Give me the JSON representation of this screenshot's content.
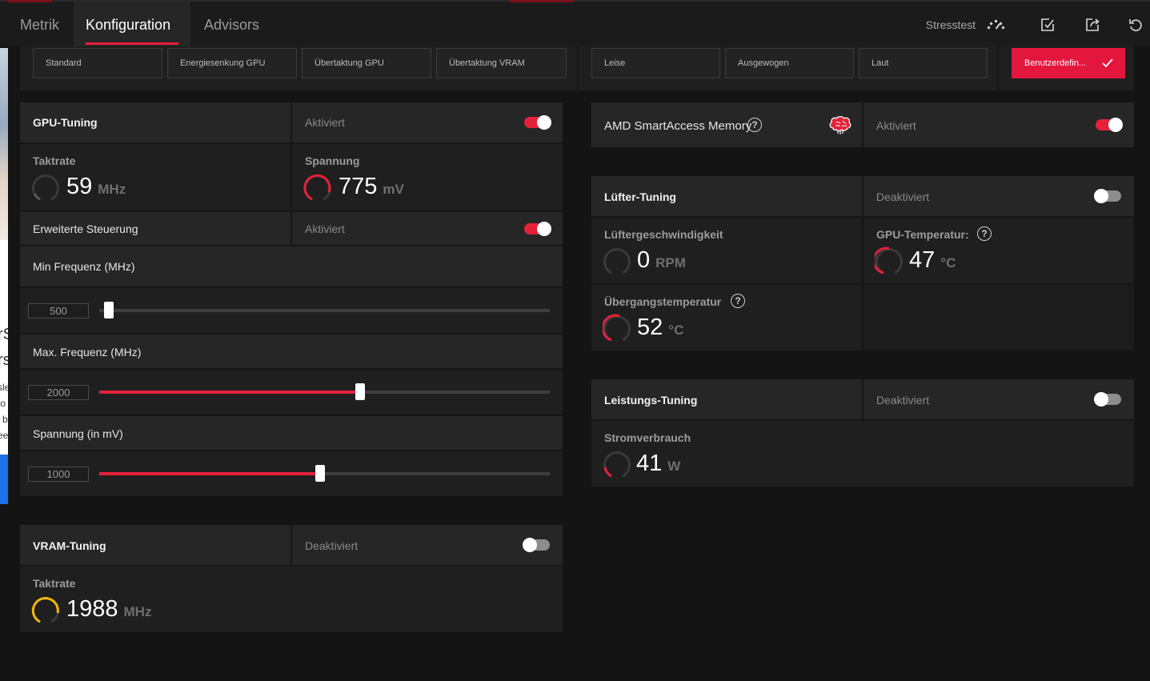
{
  "nav": {
    "tabs": [
      {
        "label": "Metrik"
      },
      {
        "label": "Konfiguration"
      },
      {
        "label": "Advisors"
      }
    ],
    "active_tab": "Konfiguration",
    "stresstest_label": "Stresstest",
    "icons": [
      "speedometer-icon",
      "checklist-icon",
      "export-icon",
      "reset-icon"
    ]
  },
  "presets_gpu": [
    "Standard",
    "Energiesenkung GPU",
    "Übertaktung GPU",
    "Übertaktung VRAM"
  ],
  "presets_fan": [
    "Leise",
    "Ausgewogen",
    "Laut"
  ],
  "preset_custom": {
    "label": "Benutzerdefin...",
    "selected": true
  },
  "gpu_tuning": {
    "title": "GPU-Tuning",
    "status": "Aktiviert",
    "enabled": true,
    "clock": {
      "label": "Taktrate",
      "value": "59",
      "unit": "MHz"
    },
    "voltage": {
      "label": "Spannung",
      "value": "775",
      "unit": "mV"
    },
    "advanced": {
      "label": "Erweiterte Steuerung",
      "status": "Aktiviert",
      "enabled": true
    },
    "sliders": [
      {
        "label": "Min Frequenz (MHz)",
        "value": "500",
        "fraction": 0.01
      },
      {
        "label": "Max. Frequenz (MHz)",
        "value": "2000",
        "fraction": 0.58
      },
      {
        "label": "Spannung (in mV)",
        "value": "1000",
        "fraction": 0.49
      }
    ]
  },
  "vram_tuning": {
    "title": "VRAM-Tuning",
    "status": "Deaktiviert",
    "enabled": false,
    "clock": {
      "label": "Taktrate",
      "value": "1988",
      "unit": "MHz"
    }
  },
  "smart_access": {
    "title": "AMD SmartAccess Memory",
    "status": "Aktiviert",
    "enabled": true
  },
  "fan_tuning": {
    "title": "Lüfter-Tuning",
    "status": "Deaktiviert",
    "enabled": false,
    "fan_speed": {
      "label": "Lüftergeschwindigkeit",
      "value": "0",
      "unit": "RPM"
    },
    "gpu_temp": {
      "label": "GPU-Temperatur:",
      "value": "47",
      "unit": "°C"
    },
    "junction_temp": {
      "label": "Übergangstemperatur",
      "value": "52",
      "unit": "°C"
    }
  },
  "power_tuning": {
    "title": "Leistungs-Tuning",
    "status": "Deaktiviert",
    "enabled": false,
    "power": {
      "label": "Stromverbrauch",
      "value": "41",
      "unit": "W"
    }
  },
  "background_window": {
    "text": [
      "rS",
      "rs",
      "sle",
      "to",
      "l b",
      "ee"
    ]
  },
  "colors": {
    "accent": "#e5213a",
    "gauge_gold": "#f5b800",
    "panel": "#242424",
    "bg": "#141414"
  }
}
